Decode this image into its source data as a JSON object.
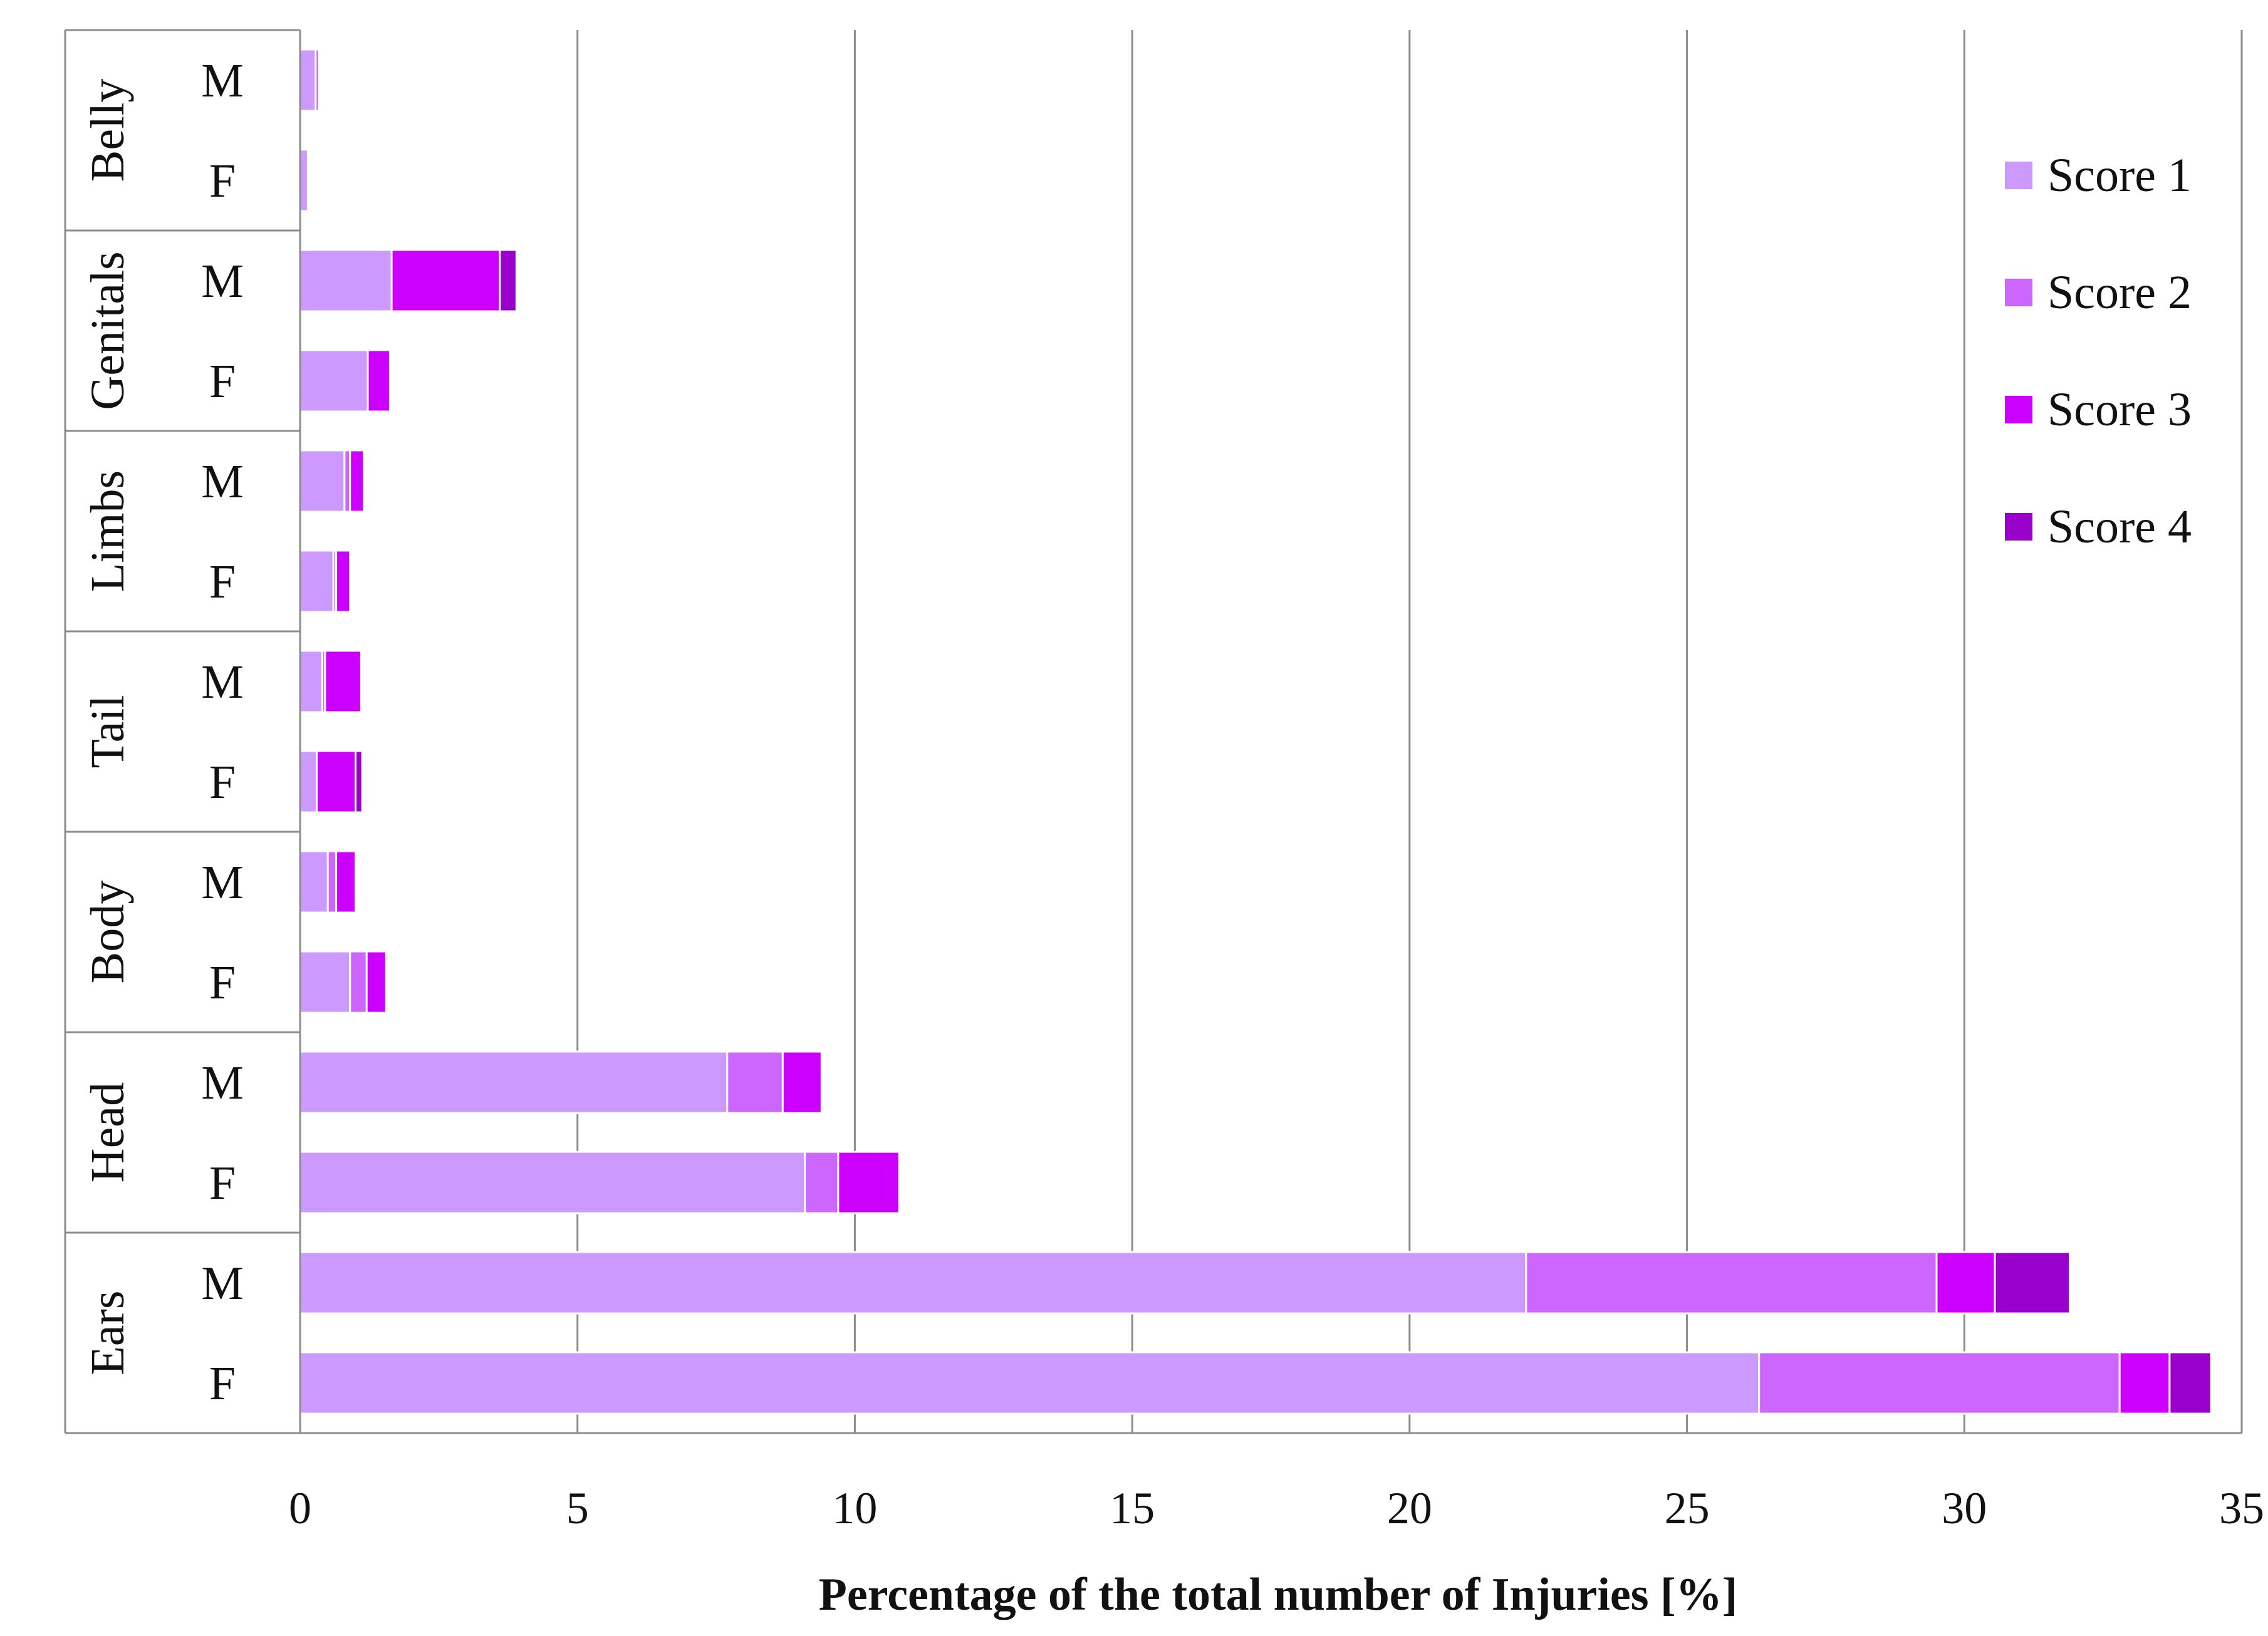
{
  "chart_data": {
    "type": "bar",
    "orientation": "horizontal",
    "stacked": true,
    "title": "",
    "xlabel": "Percentage of the total number of Injuries [%]",
    "ylabel": "",
    "xlim": [
      0,
      35
    ],
    "xticks": [
      0,
      5,
      10,
      15,
      20,
      25,
      30,
      35
    ],
    "grid": "vertical",
    "legend_position": "top-right",
    "groups": [
      {
        "name": "Belly",
        "rows": [
          "M",
          "F"
        ]
      },
      {
        "name": "Genitals",
        "rows": [
          "M",
          "F"
        ]
      },
      {
        "name": "Limbs",
        "rows": [
          "M",
          "F"
        ]
      },
      {
        "name": "Tail",
        "rows": [
          "M",
          "F"
        ]
      },
      {
        "name": "Body",
        "rows": [
          "M",
          "F"
        ]
      },
      {
        "name": "Head",
        "rows": [
          "M",
          "F"
        ]
      },
      {
        "name": "Ears",
        "rows": [
          "M",
          "F"
        ]
      }
    ],
    "categories": [
      "Belly M",
      "Belly F",
      "Genitals M",
      "Genitals F",
      "Limbs M",
      "Limbs F",
      "Tail M",
      "Tail F",
      "Body M",
      "Body F",
      "Head M",
      "Head F",
      "Ears M",
      "Ears F"
    ],
    "series": [
      {
        "name": "Score 1",
        "color": "#cc99ff",
        "values": [
          0.28,
          0.14,
          1.65,
          1.22,
          0.8,
          0.6,
          0.4,
          0.3,
          0.5,
          0.9,
          7.7,
          9.1,
          22.1,
          26.3
        ]
      },
      {
        "name": "Score 2",
        "color": "#cc66ff",
        "values": [
          0.06,
          0.0,
          0.0,
          0.0,
          0.1,
          0.05,
          0.05,
          0.0,
          0.15,
          0.3,
          1.0,
          0.6,
          7.4,
          6.5
        ]
      },
      {
        "name": "Score 3",
        "color": "#cc00ff",
        "values": [
          0.0,
          0.0,
          1.95,
          0.4,
          0.25,
          0.25,
          0.65,
          0.7,
          0.35,
          0.35,
          0.7,
          1.1,
          1.05,
          0.9
        ]
      },
      {
        "name": "Score 4",
        "color": "#9900cc",
        "values": [
          0.0,
          0.0,
          0.3,
          0.0,
          0.0,
          0.0,
          0.0,
          0.12,
          0.0,
          0.0,
          0.0,
          0.0,
          1.35,
          0.75
        ]
      }
    ]
  }
}
